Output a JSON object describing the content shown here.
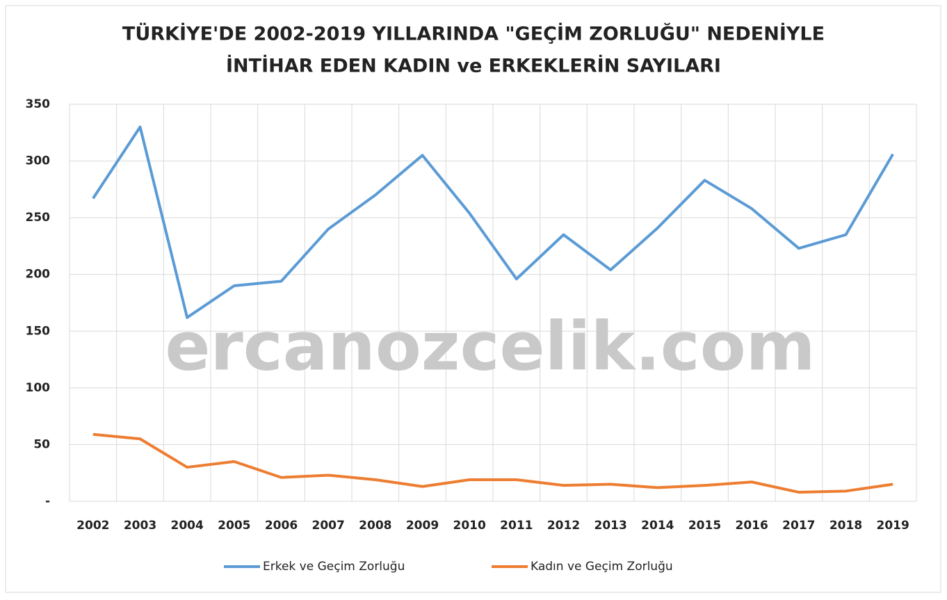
{
  "chart_data": {
    "type": "line",
    "title": [
      "TÜRKİYE'DE 2002-2019 YILLARINDA \"GEÇİM ZORLUĞU\" NEDENİYLE",
      "İNTİHAR EDEN KADIN ve ERKEKLERİN SAYILARI"
    ],
    "watermark": "ercanozcelik.com",
    "categories": [
      "2002",
      "2003",
      "2004",
      "2005",
      "2006",
      "2007",
      "2008",
      "2009",
      "2010",
      "2011",
      "2012",
      "2013",
      "2014",
      "2015",
      "2016",
      "2017",
      "2018",
      "2019"
    ],
    "series": [
      {
        "name": "Erkek ve Geçim Zorluğu",
        "color": "#5b9bd5",
        "values": [
          267,
          330,
          162,
          190,
          194,
          240,
          270,
          305,
          254,
          196,
          235,
          204,
          241,
          283,
          258,
          223,
          235,
          306
        ]
      },
      {
        "name": "Kadın ve Geçim Zorluğu",
        "color": "#ed7d31",
        "values": [
          59,
          55,
          30,
          35,
          21,
          23,
          19,
          13,
          19,
          19,
          14,
          15,
          12,
          14,
          17,
          8,
          9,
          15
        ]
      }
    ],
    "ylim": [
      0,
      350
    ],
    "yticks": [
      {
        "value": 0,
        "label": "-"
      },
      50,
      100,
      150,
      200,
      250,
      300,
      350
    ],
    "grid": true,
    "legend": "bottom"
  }
}
